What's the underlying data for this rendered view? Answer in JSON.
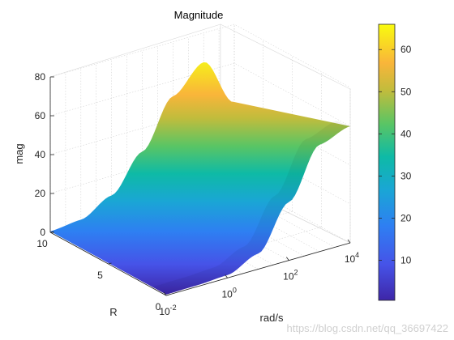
{
  "chart_data": {
    "type": "surface",
    "title": "Magnitude",
    "xlabel": "rad/s",
    "ylabel": "R",
    "zlabel": "mag",
    "x_scale": "log",
    "x_ticks": [
      {
        "base": "10",
        "exp": "-2"
      },
      {
        "base": "10",
        "exp": "0"
      },
      {
        "base": "10",
        "exp": "2"
      },
      {
        "base": "10",
        "exp": "4"
      }
    ],
    "y_ticks": [
      "0",
      "5",
      "10"
    ],
    "z_ticks": [
      "0",
      "20",
      "40",
      "60",
      "80"
    ],
    "colorbar_ticks": [
      "10",
      "20",
      "30",
      "40",
      "50",
      "60"
    ],
    "colorbar_range": [
      0.5,
      66
    ],
    "colormap": "parula",
    "grid": true,
    "zlim": [
      0,
      80
    ],
    "surface_profile": {
      "description_of_axes": "magnitude vs rad/s at R = 0 (front edge) and R = 10 (back edge)",
      "x_rad_s": [
        0.01,
        0.1,
        1,
        10,
        100,
        1000,
        10000
      ],
      "mag_at_R0": [
        0.5,
        0.7,
        1.5,
        8,
        30,
        55,
        60
      ],
      "mag_at_R10": [
        0.5,
        2,
        10,
        28,
        52,
        65,
        40
      ]
    }
  },
  "watermark": "https://blog.csdn.net/qq_36697422"
}
